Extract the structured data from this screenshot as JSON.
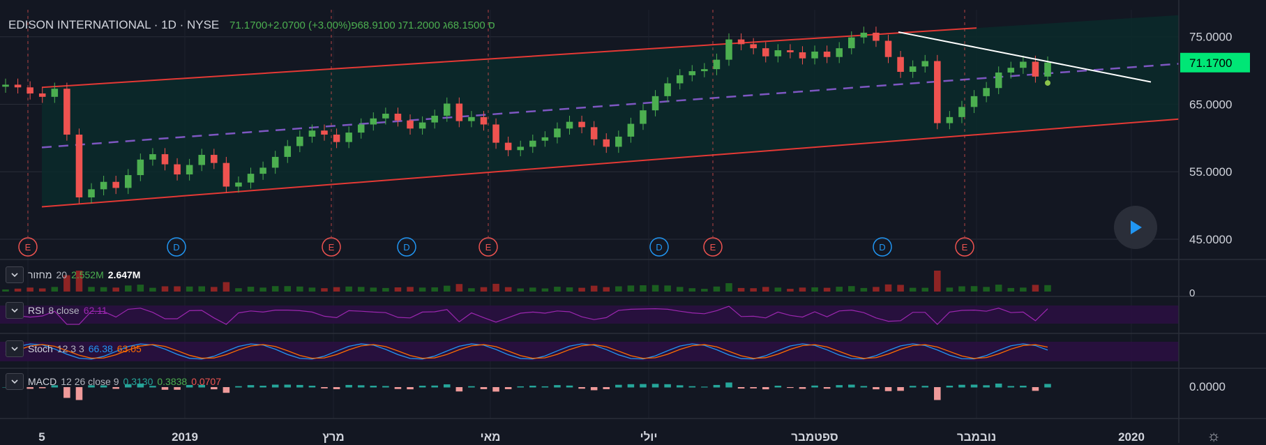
{
  "header": {
    "symbol_line": "EDISON INTERNATIONAL · 1D · NYSE",
    "values_line": "71.1700+2.0700 (+3.00%)ס 68.1500ג 71.2000נ 68.9100פ"
  },
  "colors": {
    "background": "#131722",
    "up": "#26a69a",
    "up_candle": "#4caf50",
    "down": "#ef5350",
    "channel": "#e53935",
    "channel_fill": "#0b2a2a",
    "midline": "#7e57c2",
    "trendline": "#ffffff",
    "last_price_bg": "#00e676"
  },
  "price_axis": {
    "ticks": [
      "75.0000",
      "65.0000",
      "55.0000",
      "45.0000"
    ],
    "last_price": "71.1700"
  },
  "time_axis": {
    "labels": [
      "5",
      "2019",
      "מרץ",
      "מאי",
      "יולי",
      "ספטמבר",
      "נובמבר",
      "2020"
    ]
  },
  "event_markers": {
    "earnings_label": "E",
    "dividend_label": "D"
  },
  "panes": {
    "volume": {
      "name": "מחזור",
      "params": "20",
      "value1": "2.552M",
      "value2": "2.647M",
      "axis_tick": "0"
    },
    "rsi": {
      "name": "RSI",
      "params": "8 close",
      "value": "62.11"
    },
    "stoch": {
      "name": "Stoch",
      "params": "12 3 3",
      "k": "66.38",
      "d": "63.05"
    },
    "macd": {
      "name": "MACD",
      "params": "12 26 close 9",
      "macd": "0.3130",
      "signal": "0.3838",
      "hist": "0.0707",
      "axis_tick": "0.0000"
    }
  },
  "chart_data": {
    "type": "candlestick",
    "title": "EDISON INTERNATIONAL · 1D · NYSE",
    "y_axis": {
      "ylim": [
        42,
        79
      ],
      "ticks": [
        45,
        55,
        65,
        75
      ]
    },
    "x_axis_labels": [
      "5",
      "2019",
      "מרץ",
      "מאי",
      "יולי",
      "ספטמבר",
      "נובמבר",
      "2020"
    ],
    "last": {
      "close": 71.17,
      "change": 2.07,
      "change_pct": 3.0,
      "open": 68.91,
      "high": 71.2,
      "low": 68.15
    },
    "closes": [
      67.9,
      67.5,
      66.6,
      66.1,
      67.3,
      60.5,
      51.2,
      52.4,
      53.5,
      52.6,
      54.5,
      56.8,
      57.6,
      56.1,
      54.6,
      56.0,
      57.5,
      56.3,
      52.8,
      53.4,
      54.7,
      55.6,
      57.2,
      58.8,
      60.2,
      61.1,
      60.5,
      59.4,
      60.8,
      62.0,
      62.9,
      63.6,
      62.6,
      61.4,
      62.3,
      63.3,
      65.1,
      62.5,
      63.1,
      62.0,
      59.3,
      58.2,
      58.7,
      59.6,
      60.1,
      61.4,
      62.4,
      61.6,
      59.8,
      58.7,
      60.2,
      62.1,
      64.1,
      66.2,
      68.1,
      69.3,
      69.9,
      70.2,
      71.6,
      74.6,
      73.9,
      73.3,
      72.1,
      73.0,
      72.7,
      71.8,
      72.8,
      72.0,
      73.3,
      74.9,
      75.6,
      74.4,
      72.0,
      69.8,
      70.6,
      71.4,
      62.2,
      63.1,
      64.6,
      66.2,
      67.4,
      69.7,
      70.4,
      71.3,
      69.1,
      71.17
    ],
    "channel": {
      "upper": [
        67.5,
        78.2
      ],
      "lower": [
        49.8,
        62.8
      ],
      "mid": [
        58.6,
        71.0
      ]
    },
    "trendline": {
      "from": 75.7,
      "to": 68.3
    },
    "event_labels": [
      "E",
      "D",
      "E",
      "D",
      "E",
      "D",
      "E",
      "D",
      "E"
    ]
  }
}
